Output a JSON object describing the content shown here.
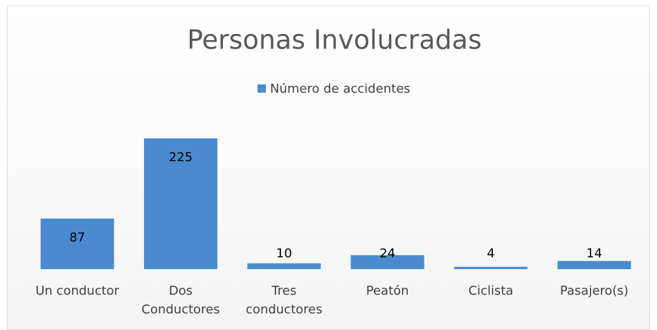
{
  "chart_data": {
    "type": "bar",
    "title": "Personas Involucradas",
    "categories": [
      "Un conductor",
      "Dos Conductores",
      "Tres conductores",
      "Peatón",
      "Ciclista",
      "Pasajero(s)"
    ],
    "series": [
      {
        "name": "Número de accidentes",
        "color": "#4a8bcf",
        "values": [
          87,
          225,
          10,
          24,
          4,
          14
        ]
      }
    ],
    "legend": "top"
  }
}
